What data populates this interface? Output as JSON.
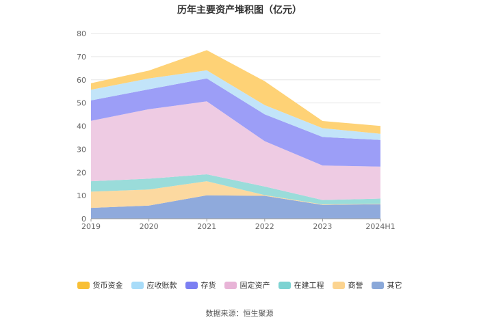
{
  "chart_data": {
    "type": "area",
    "title": "历年主要资产堆积图（亿元）",
    "categories": [
      "2019",
      "2020",
      "2021",
      "2022",
      "2023",
      "2024H1"
    ],
    "ylim": [
      0,
      80
    ],
    "yticks": [
      0,
      10,
      20,
      30,
      40,
      50,
      60,
      70,
      80
    ],
    "grid": true,
    "legend_position": "bottom",
    "series": [
      {
        "name": "其它",
        "color": "#8FAADC",
        "values": [
          4.7,
          5.7,
          10.1,
          9.9,
          6.0,
          6.3
        ]
      },
      {
        "name": "商誉",
        "color": "#FCD9A0",
        "values": [
          7.0,
          6.9,
          6.1,
          0.3,
          0.2,
          0.2
        ]
      },
      {
        "name": "在建工程",
        "color": "#9ADCDA",
        "values": [
          4.5,
          4.7,
          3.0,
          3.7,
          1.9,
          2.2
        ]
      },
      {
        "name": "固定资产",
        "color": "#EECBE3",
        "values": [
          26.1,
          30.0,
          31.5,
          19.6,
          14.9,
          13.8
        ]
      },
      {
        "name": "存货",
        "color": "#9C9EF7",
        "values": [
          8.8,
          8.6,
          9.9,
          11.6,
          12.3,
          11.5
        ]
      },
      {
        "name": "应收账款",
        "color": "#C2E4F9",
        "values": [
          4.6,
          4.7,
          3.5,
          4.0,
          3.8,
          2.7
        ]
      },
      {
        "name": "货币资金",
        "color": "#FED276",
        "values": [
          2.8,
          3.4,
          8.7,
          10.3,
          3.1,
          3.4
        ]
      }
    ]
  },
  "legend": [
    {
      "label": "货币资金",
      "color": "#F8BF35"
    },
    {
      "label": "应收账款",
      "color": "#A8DCF9"
    },
    {
      "label": "存货",
      "color": "#7B7FF2"
    },
    {
      "label": "固定资产",
      "color": "#E8B4D7"
    },
    {
      "label": "在建工程",
      "color": "#7DD3D2"
    },
    {
      "label": "商誉",
      "color": "#FCD490"
    },
    {
      "label": "其它",
      "color": "#8AA8D9"
    }
  ],
  "source": "数据来源：恒生聚源"
}
